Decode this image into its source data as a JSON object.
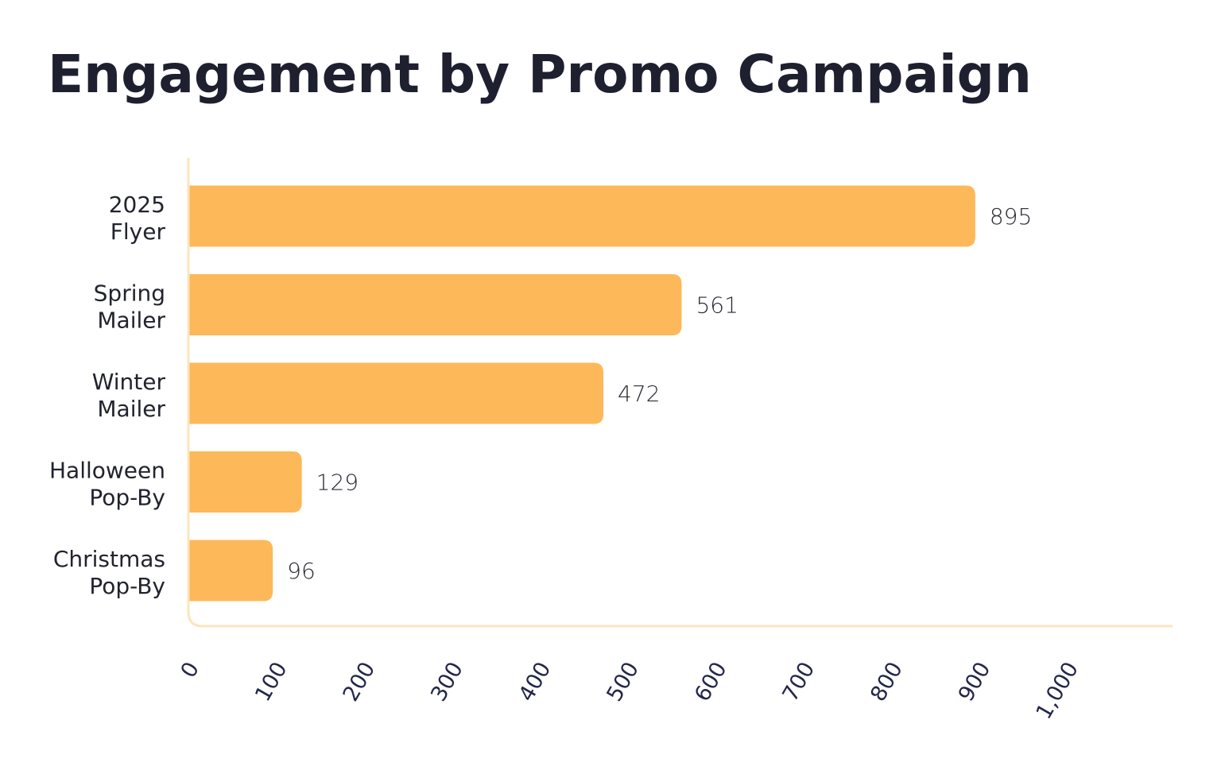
{
  "colors": {
    "bar": "#FDB859",
    "axis": "#FCE5BC",
    "title": "#1E2030",
    "text": "#22232F"
  },
  "chart_data": {
    "type": "bar",
    "orientation": "horizontal",
    "title": "Engagement by Promo Campaign",
    "xlabel": "",
    "ylabel": "",
    "categories": [
      [
        "2025",
        "Flyer"
      ],
      [
        "Spring",
        "Mailer"
      ],
      [
        "Winter",
        "Mailer"
      ],
      [
        "Halloween",
        "Pop-By"
      ],
      [
        "Christmas",
        "Pop-By"
      ]
    ],
    "values": [
      895,
      561,
      472,
      129,
      96
    ],
    "value_labels": [
      "895",
      "561",
      "472",
      "129",
      "96"
    ],
    "xlim": [
      0,
      1000
    ],
    "ticks": [
      0,
      100,
      200,
      300,
      400,
      500,
      600,
      700,
      800,
      900,
      1000
    ],
    "tick_labels": [
      "0",
      "100",
      "200",
      "300",
      "400",
      "500",
      "600",
      "700",
      "800",
      "900",
      "1,000"
    ],
    "grid": false,
    "legend": "none"
  }
}
